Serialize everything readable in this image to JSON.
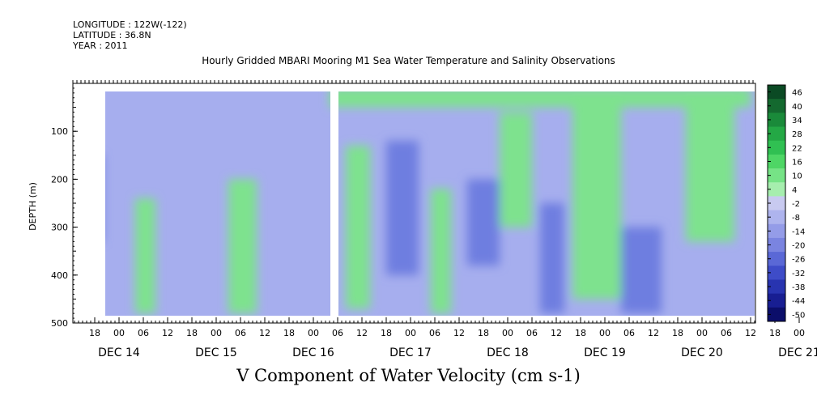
{
  "header": {
    "longitude": "LONGITUDE : 122W(-122)",
    "latitude": "LATITUDE : 36.8N",
    "year": "YEAR : 2011"
  },
  "chart_data": {
    "type": "heatmap",
    "title": "Hourly Gridded MBARI Mooring M1 Sea Water Temperature and Salinity Observations",
    "xlabel": "V Component of Water Velocity (cm s-1)",
    "ylabel": "DEPTH (m)",
    "ylim": [
      500,
      0
    ],
    "y_ticks": [
      100,
      200,
      300,
      400,
      500
    ],
    "x_hour_ticks": [
      "18",
      "00",
      "06",
      "12",
      "18",
      "00",
      "06",
      "12",
      "18",
      "00",
      "06",
      "12",
      "18",
      "00",
      "06",
      "12",
      "18",
      "00",
      "06",
      "12",
      "18",
      "00",
      "06",
      "12",
      "18",
      "00",
      "06",
      "12",
      "18",
      "00",
      "06",
      "12"
    ],
    "x_day_labels": [
      "DEC 14",
      "DEC 15",
      "DEC 16",
      "DEC 17",
      "DEC 18",
      "DEC 19",
      "DEC 20",
      "DEC 21"
    ],
    "colorbar_labels": [
      "46",
      "40",
      "34",
      "28",
      "22",
      "16",
      "10",
      "4",
      "-2",
      "-8",
      "-14",
      "-20",
      "-26",
      "-32",
      "-38",
      "-44",
      "-50"
    ],
    "colorbar_colors": [
      "#0b4a24",
      "#14692f",
      "#1a8a3a",
      "#24a845",
      "#30c052",
      "#4ed665",
      "#76e386",
      "#a6eeae",
      "#c8caf0",
      "#aeb4ee",
      "#949ce8",
      "#7a84e0",
      "#5a68d6",
      "#3e4cc8",
      "#2834b0",
      "#181e92",
      "#0b0e6a"
    ],
    "background": {
      "base": "#a6aeee",
      "green_bands": [
        {
          "x0": "DEC 15 04",
          "x1": "DEC 15 09",
          "d0": 240,
          "d1": 480
        },
        {
          "x0": "DEC 16 03",
          "x1": "DEC 16 10",
          "d0": 200,
          "d1": 480
        },
        {
          "x0": "DEC 17 08",
          "x1": "DEC 17 14",
          "d0": 130,
          "d1": 470
        },
        {
          "x0": "DEC 18 05",
          "x1": "DEC 18 10",
          "d0": 220,
          "d1": 480
        },
        {
          "x0": "DEC 18 22",
          "x1": "DEC 19 06",
          "d0": 60,
          "d1": 300
        },
        {
          "x0": "DEC 19 16",
          "x1": "DEC 20 04",
          "d0": 10,
          "d1": 450
        },
        {
          "x0": "DEC 20 20",
          "x1": "DEC 21 08",
          "d0": 10,
          "d1": 330
        },
        {
          "x0": "DEC 17 04",
          "x1": "DEC 21 12",
          "d0": 10,
          "d1": 50
        }
      ],
      "blue_bands": [
        {
          "x0": "DEC 14 12",
          "x1": "DEC 14 20",
          "d0": 150,
          "d1": 330
        },
        {
          "x0": "DEC 17 18",
          "x1": "DEC 18 02",
          "d0": 120,
          "d1": 400
        },
        {
          "x0": "DEC 18 14",
          "x1": "DEC 18 22",
          "d0": 200,
          "d1": 380
        },
        {
          "x0": "DEC 19 08",
          "x1": "DEC 19 14",
          "d0": 250,
          "d1": 480
        },
        {
          "x0": "DEC 20 04",
          "x1": "DEC 20 14",
          "d0": 300,
          "d1": 480
        }
      ]
    }
  }
}
